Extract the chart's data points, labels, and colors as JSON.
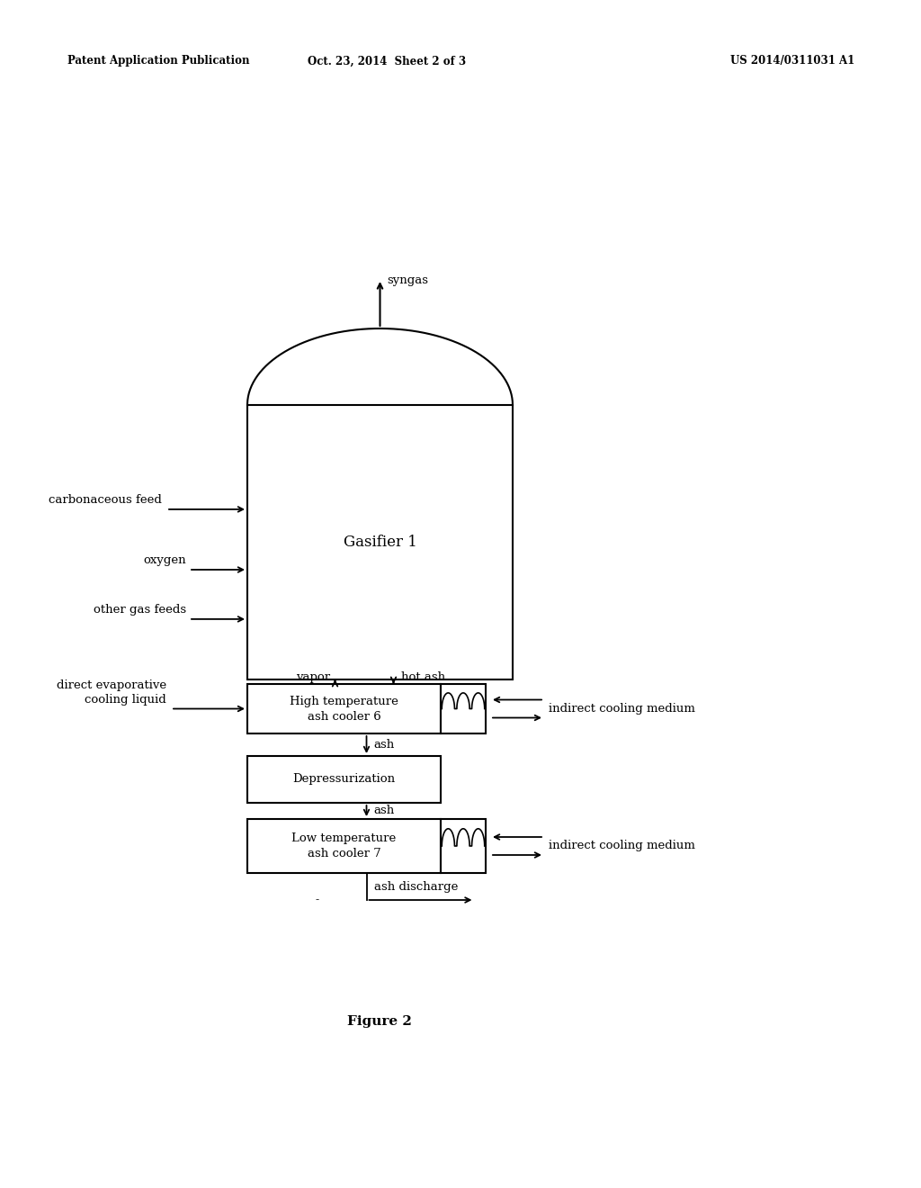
{
  "bg_color": "#ffffff",
  "header_left": "Patent Application Publication",
  "header_mid": "Oct. 23, 2014  Sheet 2 of 3",
  "header_right": "US 2014/0311031 A1",
  "figure_caption": "Figure 2",
  "gasifier_label": "Gasifier 1",
  "ht_cooler_label": "High temperature\nash cooler 6",
  "depressurization_label": "Depressurization",
  "lt_cooler_label": "Low temperature\nash cooler 7",
  "syngas_label": "syngas",
  "vapor_label": "vapor",
  "hot_ash_label": "hot ash",
  "ash_label1": "ash",
  "ash_label2": "ash",
  "ash_discharge_label": "ash discharge",
  "carb_feed_label": "carbonaceous feed",
  "oxygen_label": "oxygen",
  "other_gas_label": "other gas feeds",
  "direct_evap_label": "direct evaporative\ncooling liquid",
  "indirect_cool1_label": "indirect cooling medium",
  "indirect_cool2_label": "indirect cooling medium",
  "dash_label": "-"
}
